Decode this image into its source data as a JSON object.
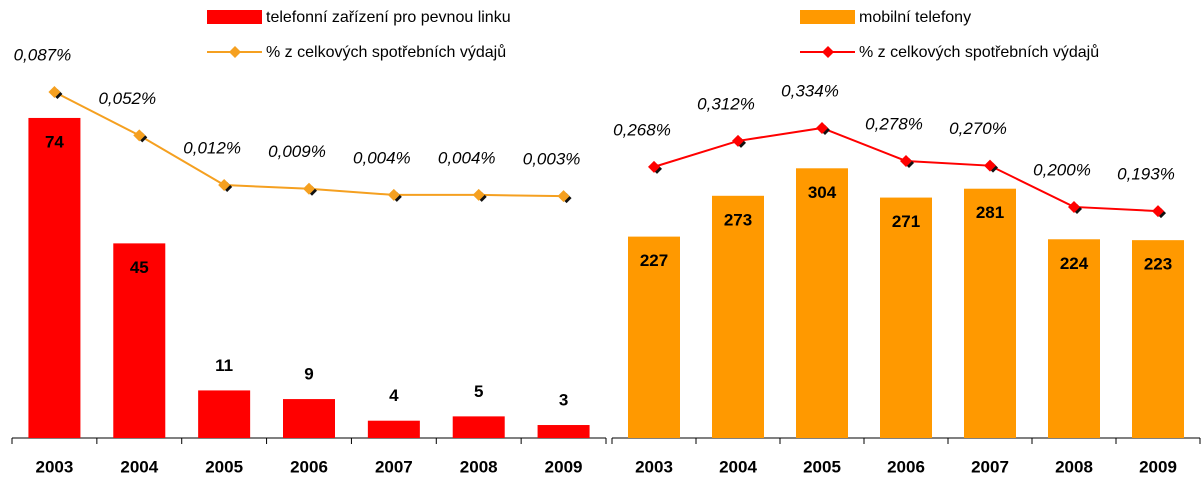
{
  "chart_data": [
    {
      "type": "bar",
      "legend": "top",
      "categories": [
        "2003",
        "2004",
        "2005",
        "2006",
        "2007",
        "2008",
        "2009"
      ],
      "series": [
        {
          "name": "telefonní zařízení pro pevnou linku",
          "color": "#ff0000",
          "values": [
            74,
            45,
            11,
            9,
            4,
            5,
            3
          ]
        },
        {
          "name": "% z celkových spotřebních výdajů",
          "color": "#f5a020",
          "axis": "y2",
          "values": [
            0.087,
            0.052,
            0.012,
            0.009,
            0.004,
            0.004,
            0.003
          ],
          "value_labels": [
            "0,087%",
            "0,052%",
            "0,012%",
            "0,009%",
            "0,004%",
            "0,004%",
            "0,003%"
          ]
        }
      ],
      "ylim": [
        0,
        80
      ],
      "y2lim": [
        -0.192,
        0.087
      ]
    },
    {
      "type": "bar",
      "legend": "top",
      "categories": [
        "2003",
        "2004",
        "2005",
        "2006",
        "2007",
        "2008",
        "2009"
      ],
      "series": [
        {
          "name": "mobilní telefony",
          "color": "#ff9900",
          "values": [
            227,
            273,
            304,
            271,
            281,
            224,
            223
          ]
        },
        {
          "name": "% z celkových spotřebních výdajů",
          "color": "#ff0000",
          "axis": "y2",
          "values": [
            0.268,
            0.312,
            0.334,
            0.278,
            0.27,
            0.2,
            0.193
          ],
          "value_labels": [
            "0,268%",
            "0,312%",
            "0,334%",
            "0,278%",
            "0,270%",
            "0,200%",
            "0,193%"
          ]
        }
      ],
      "ylim": [
        0,
        390
      ],
      "y2lim": [
        -0.192,
        0.395
      ]
    }
  ]
}
